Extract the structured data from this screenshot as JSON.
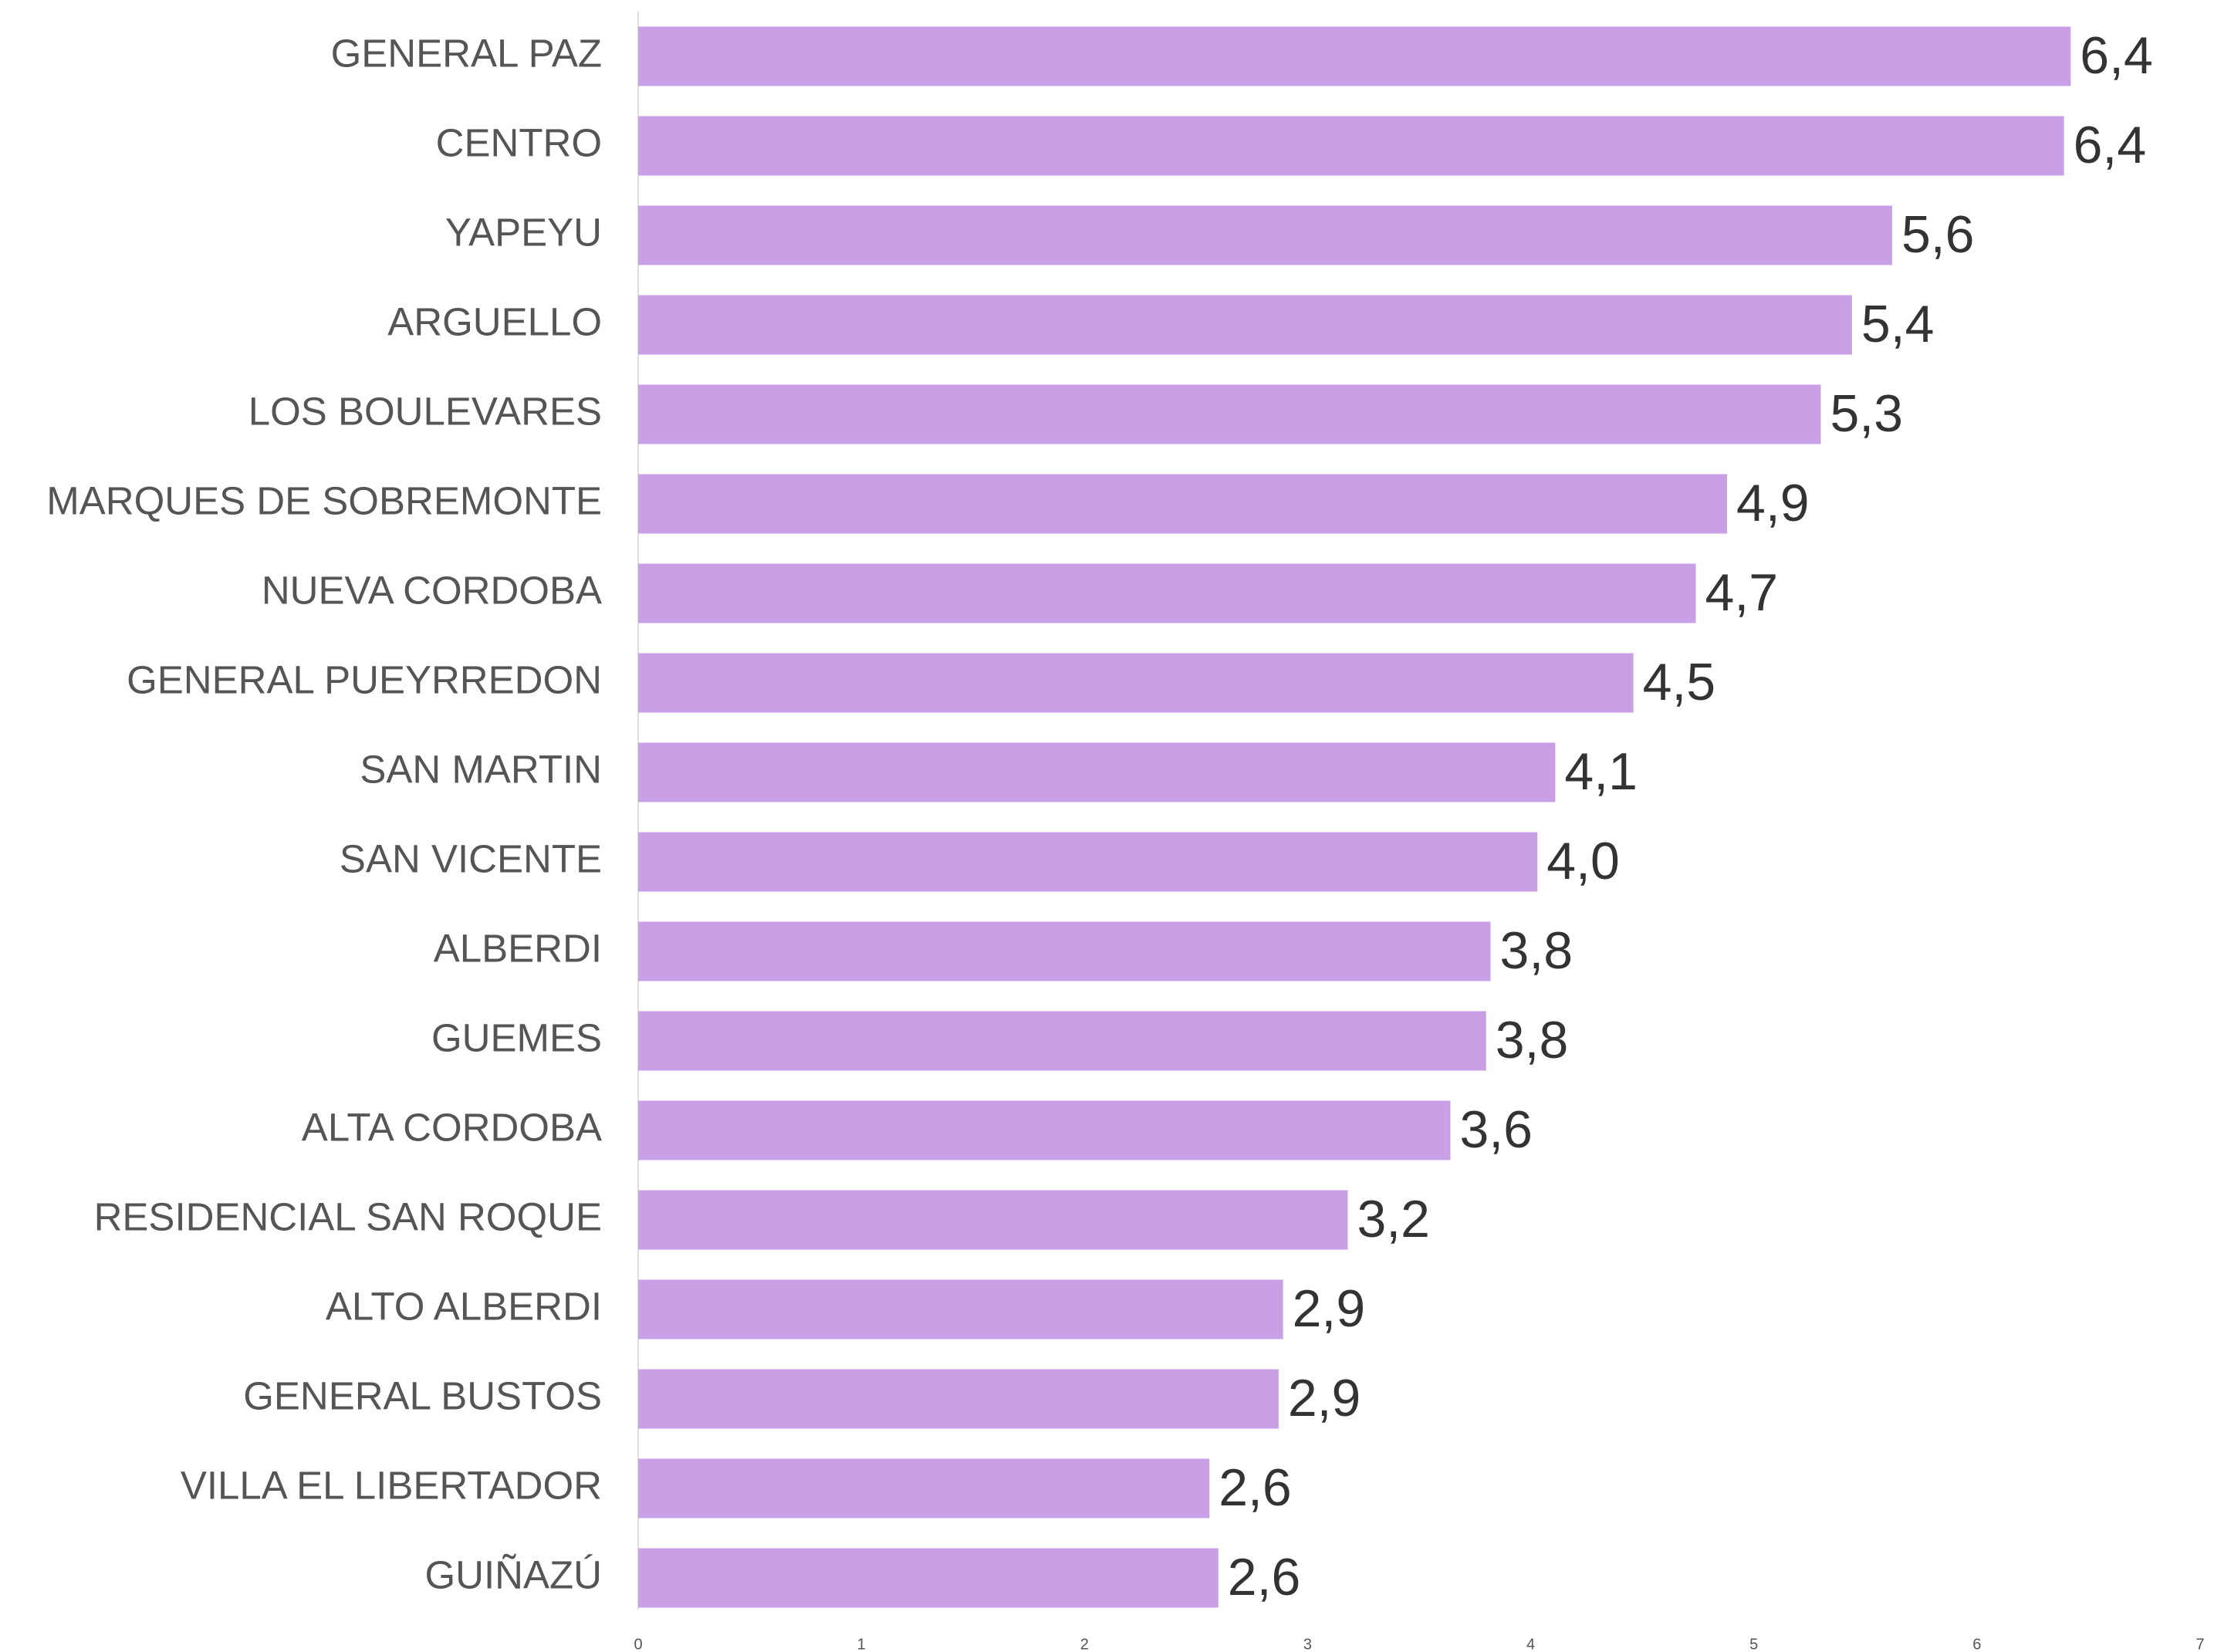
{
  "chart_data": {
    "type": "barh",
    "categories": [
      "GENERAL PAZ",
      "CENTRO",
      "YAPEYU",
      "ARGUELLO",
      "LOS BOULEVARES",
      "MARQUES DE SOBREMONTE",
      "NUEVA CORDOBA",
      "GENERAL PUEYRREDON",
      "SAN MARTIN",
      "SAN VICENTE",
      "ALBERDI",
      "GUEMES",
      "ALTA CORDOBA",
      "RESIDENCIAL SAN ROQUE",
      "ALTO ALBERDI",
      "GENERAL BUSTOS",
      "VILLA EL LIBERTADOR",
      "GUIÑAZÚ"
    ],
    "values": [
      6.42,
      6.39,
      5.62,
      5.44,
      5.3,
      4.88,
      4.74,
      4.46,
      4.11,
      4.03,
      3.82,
      3.8,
      3.64,
      3.18,
      2.89,
      2.87,
      2.56,
      2.6
    ],
    "value_labels": [
      "6,4",
      "6,4",
      "5,6",
      "5,4",
      "5,3",
      "4,9",
      "4,7",
      "4,5",
      "4,1",
      "4,0",
      "3,8",
      "3,8",
      "3,6",
      "3,2",
      "2,9",
      "2,9",
      "2,6",
      "2,6"
    ],
    "color": "#c9a0e5",
    "xlim": [
      0,
      7
    ],
    "xticks": [
      0,
      1,
      2,
      3,
      4,
      5,
      6,
      7
    ],
    "grid": false
  }
}
